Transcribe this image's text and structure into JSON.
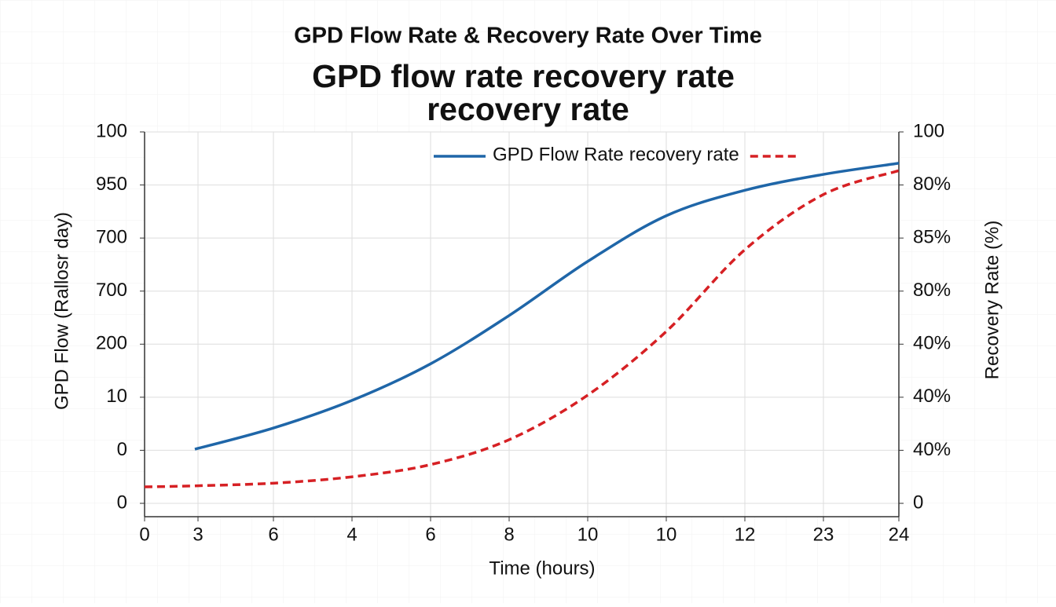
{
  "chart_data": {
    "type": "line",
    "title": "GPD Flow Rate & Recovery Rate Over Time",
    "subtitle": [
      "GPD flow rate recovery rate",
      "recovery rate"
    ],
    "x_label": "Time (hours)",
    "y_label": "GPD Flow (Rallosr day)",
    "y2_label": "Recovery Rate (%)",
    "xlim": [
      0,
      24
    ],
    "xticks": [
      0,
      {
        "value": 1.7,
        "label": "3"
      },
      {
        "value": 4.1,
        "label": "6"
      },
      {
        "value": 6.6,
        "label": "4"
      },
      {
        "value": 9.1,
        "label": "6"
      },
      {
        "value": 11.6,
        "label": "8"
      },
      {
        "value": 14.1,
        "label": "10"
      },
      {
        "value": 16.6,
        "label": "10"
      },
      {
        "value": 19.1,
        "label": "12"
      },
      {
        "value": 21.6,
        "label": "23"
      },
      24
    ],
    "ylim": [
      0,
      7
    ],
    "yticks": [
      0,
      {
        "value": 1,
        "label": "0"
      },
      {
        "value": 2,
        "label": "10"
      },
      {
        "value": 3,
        "label": "200"
      },
      {
        "value": 4,
        "label": "700"
      },
      {
        "value": 5,
        "label": "700"
      },
      {
        "value": 6,
        "label": "950"
      },
      {
        "value": 7,
        "label": "100"
      }
    ],
    "y2lim": [
      0,
      7
    ],
    "y2ticks": [
      0,
      {
        "value": 1,
        "label": "40%"
      },
      {
        "value": 2,
        "label": "40%"
      },
      {
        "value": 3,
        "label": "40%"
      },
      {
        "value": 4,
        "label": "80%"
      },
      {
        "value": 5,
        "label": "85%"
      },
      {
        "value": 6,
        "label": "80%"
      },
      {
        "value": 7,
        "label": "100"
      }
    ],
    "grid": true,
    "series": [
      {
        "name": "GPD Flow Rate",
        "color": "#1f66a8",
        "dash": false,
        "x": [
          1.6,
          4.1,
          6.6,
          9.1,
          11.6,
          14.1,
          16.6,
          19.1,
          21.6,
          24
        ],
        "values": [
          1.02,
          1.42,
          1.94,
          2.63,
          3.54,
          4.56,
          5.42,
          5.9,
          6.2,
          6.41
        ]
      },
      {
        "name": "recovery rate",
        "color": "#d62024",
        "dash": true,
        "axis": "y2",
        "x": [
          0,
          1.6,
          4.1,
          6.6,
          9.1,
          11.6,
          14.1,
          16.6,
          19.1,
          21.6,
          24
        ],
        "values": [
          0.31,
          0.33,
          0.38,
          0.5,
          0.73,
          1.2,
          2.04,
          3.24,
          4.78,
          5.82,
          6.27
        ]
      }
    ]
  }
}
